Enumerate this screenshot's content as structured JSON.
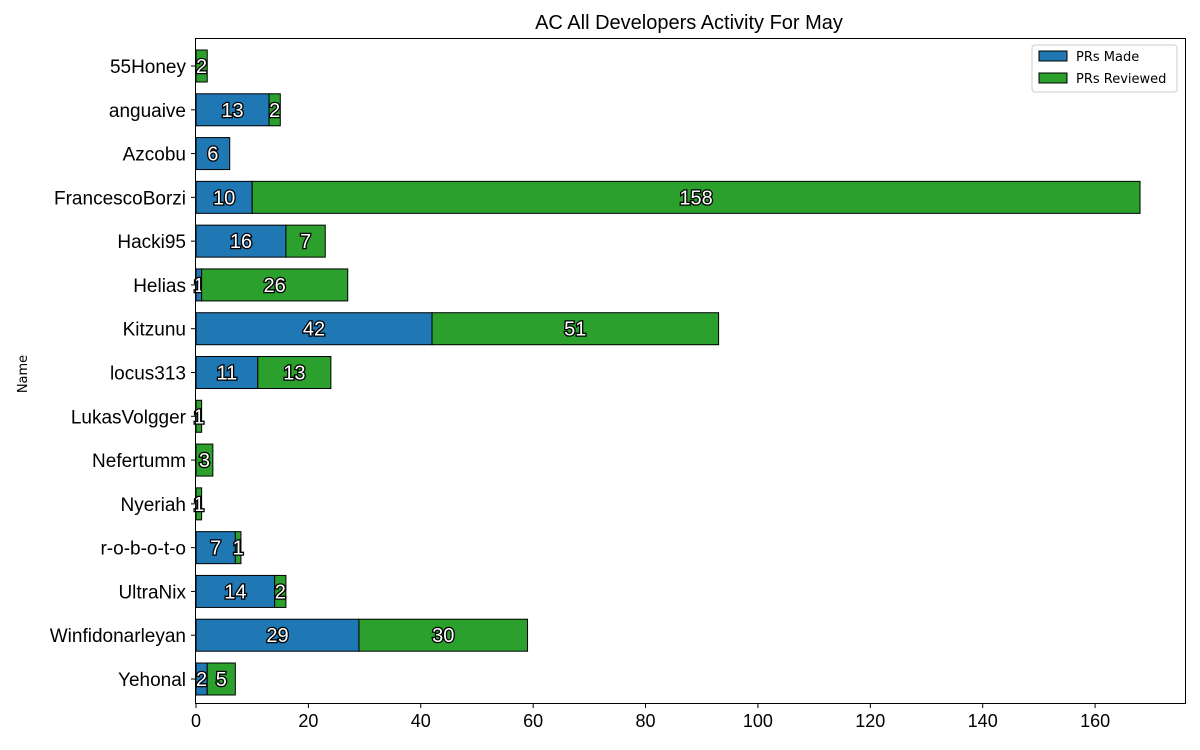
{
  "chart_data": {
    "type": "bar",
    "orientation": "horizontal",
    "stacked": true,
    "title": "AC All Developers Activity For May",
    "xlabel": "",
    "ylabel": "Name",
    "xlim": [
      0,
      176
    ],
    "xticks": [
      0,
      20,
      40,
      60,
      80,
      100,
      120,
      140,
      160
    ],
    "categories": [
      "55Honey",
      "anguaive",
      "Azcobu",
      "FrancescoBorzi",
      "Hacki95",
      "Helias",
      "Kitzunu",
      "locus313",
      "LukasVolgger",
      "Nefertumm",
      "Nyeriah",
      "r-o-b-o-t-o",
      "UltraNix",
      "Winfidonarleyan",
      "Yehonal"
    ],
    "series": [
      {
        "name": "PRs Made",
        "color": "#1f77b4",
        "values": [
          0,
          13,
          6,
          10,
          16,
          1,
          42,
          11,
          0,
          0,
          0,
          7,
          14,
          29,
          2
        ]
      },
      {
        "name": "PRs Reviewed",
        "color": "#2ca02c",
        "values": [
          2,
          2,
          0,
          158,
          7,
          26,
          51,
          13,
          1,
          3,
          1,
          1,
          2,
          30,
          5
        ]
      }
    ],
    "legend_position": "top-right",
    "grid": false
  }
}
